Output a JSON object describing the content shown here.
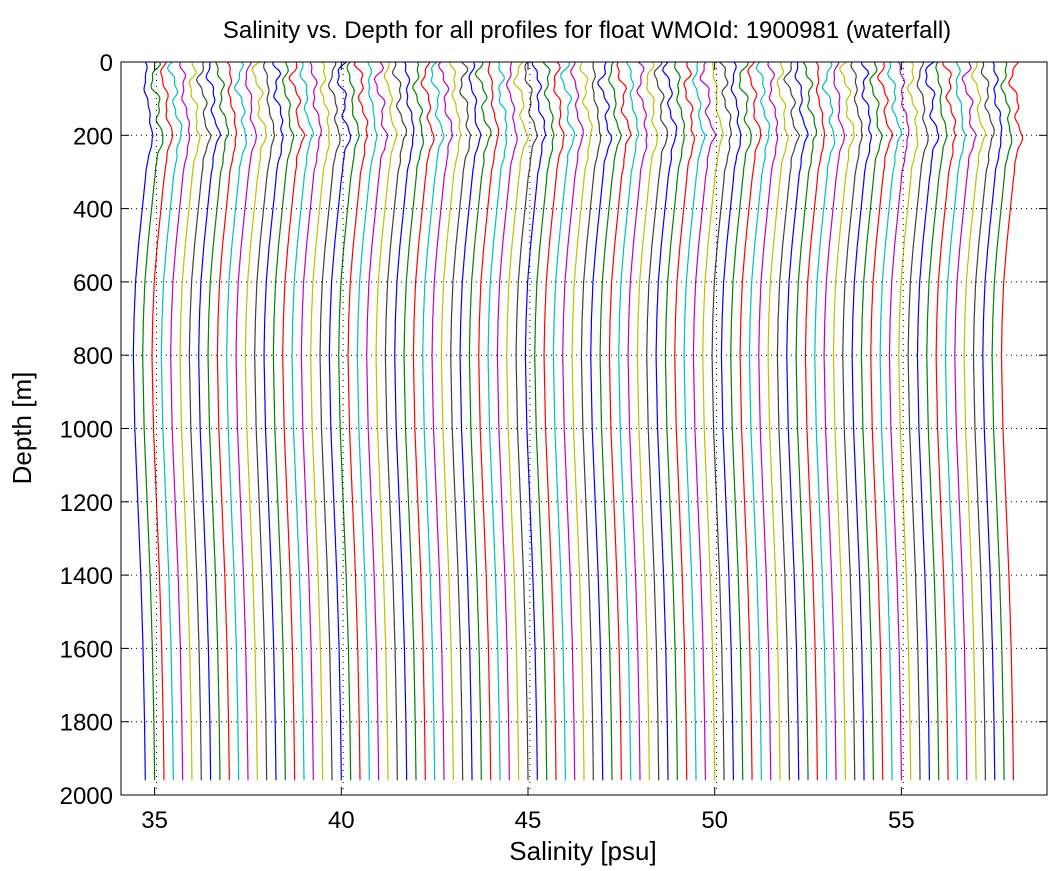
{
  "chart_data": {
    "type": "line",
    "title": "Salinity vs. Depth for all profiles for float WMOId: 1900981 (waterfall)",
    "xlabel": "Salinity [psu]",
    "ylabel": "Depth [m]",
    "xlim": [
      34.1,
      58.9
    ],
    "ylim": [
      0,
      2000
    ],
    "y_reversed": true,
    "xticks": [
      35,
      40,
      45,
      50,
      55
    ],
    "yticks": [
      0,
      200,
      400,
      600,
      800,
      1000,
      1200,
      1400,
      1600,
      1800,
      2000
    ],
    "grid": "dotted",
    "waterfall_offset_psu": 0.25,
    "profile_count": 94,
    "series_color_cycle": [
      "#0000ff",
      "#008000",
      "#ff0000",
      "#00bfbf",
      "#bf00bf",
      "#bfbf00",
      "#404040"
    ],
    "representative_profile": {
      "depth": [
        0,
        50,
        100,
        150,
        200,
        250,
        300,
        400,
        500,
        600,
        700,
        800,
        1000,
        1200,
        1400,
        1600,
        1800,
        1950
      ],
      "salinity_anomaly": [
        0.0,
        -0.02,
        0.06,
        0.1,
        0.22,
        0.1,
        0.02,
        -0.08,
        -0.18,
        -0.26,
        -0.3,
        -0.32,
        -0.28,
        -0.2,
        -0.12,
        -0.06,
        -0.02,
        0.0
      ]
    },
    "dotted_reference_lines_x": [
      35,
      40,
      45,
      50,
      55
    ]
  }
}
